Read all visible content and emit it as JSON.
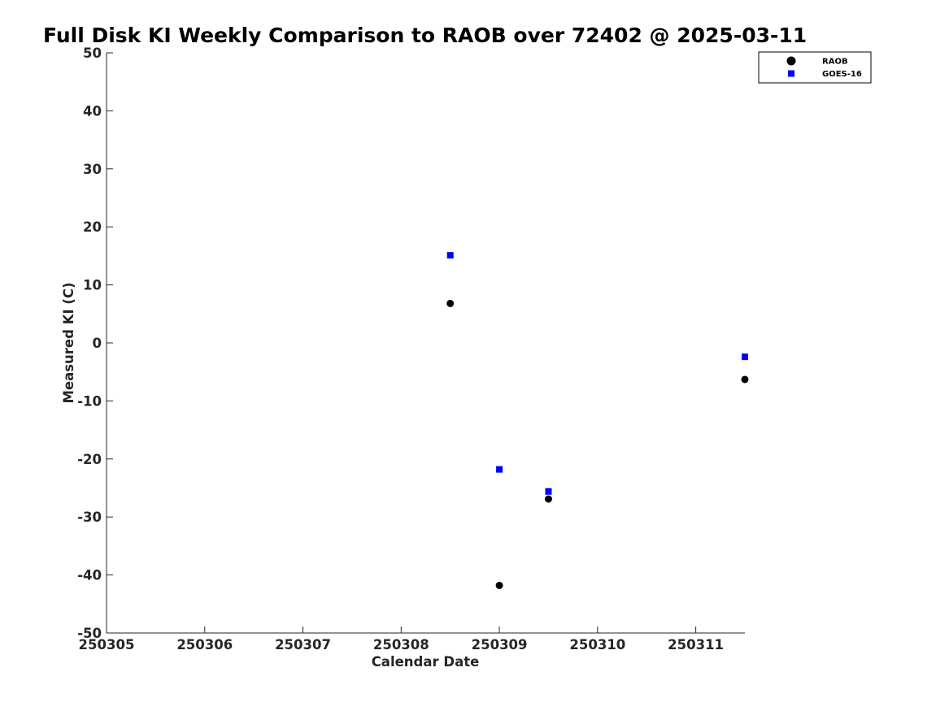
{
  "chart_data": {
    "type": "scatter",
    "title": "Full Disk KI Weekly Comparison to RAOB over 72402 @ 2025-03-11",
    "xlabel": "Calendar Date",
    "ylabel": "Measured KI (C)",
    "xlim": [
      250305,
      250311.5
    ],
    "ylim": [
      -50,
      50
    ],
    "x_ticks": [
      250305,
      250306,
      250307,
      250308,
      250309,
      250310,
      250311
    ],
    "x_tick_labels": [
      "250305",
      "250306",
      "250307",
      "250308",
      "250309",
      "250310",
      "250311"
    ],
    "y_ticks": [
      -50,
      -40,
      -30,
      -20,
      -10,
      0,
      10,
      20,
      30,
      40,
      50
    ],
    "y_tick_labels": [
      "-50",
      "-40",
      "-30",
      "-20",
      "-10",
      "0",
      "10",
      "20",
      "30",
      "40",
      "50"
    ],
    "grid": false,
    "legend_position": "top-right",
    "series": [
      {
        "name": "RAOB",
        "marker": "circle",
        "color": "#000000",
        "x": [
          250308.5,
          250309,
          250309.5,
          250311.5
        ],
        "y": [
          6.8,
          -41.8,
          -26.9,
          -6.3
        ]
      },
      {
        "name": "GOES-16",
        "marker": "square",
        "color": "#0000ff",
        "x": [
          250308.5,
          250309,
          250309.5,
          250311.5
        ],
        "y": [
          15.1,
          -21.8,
          -25.6,
          -2.4
        ]
      }
    ]
  }
}
